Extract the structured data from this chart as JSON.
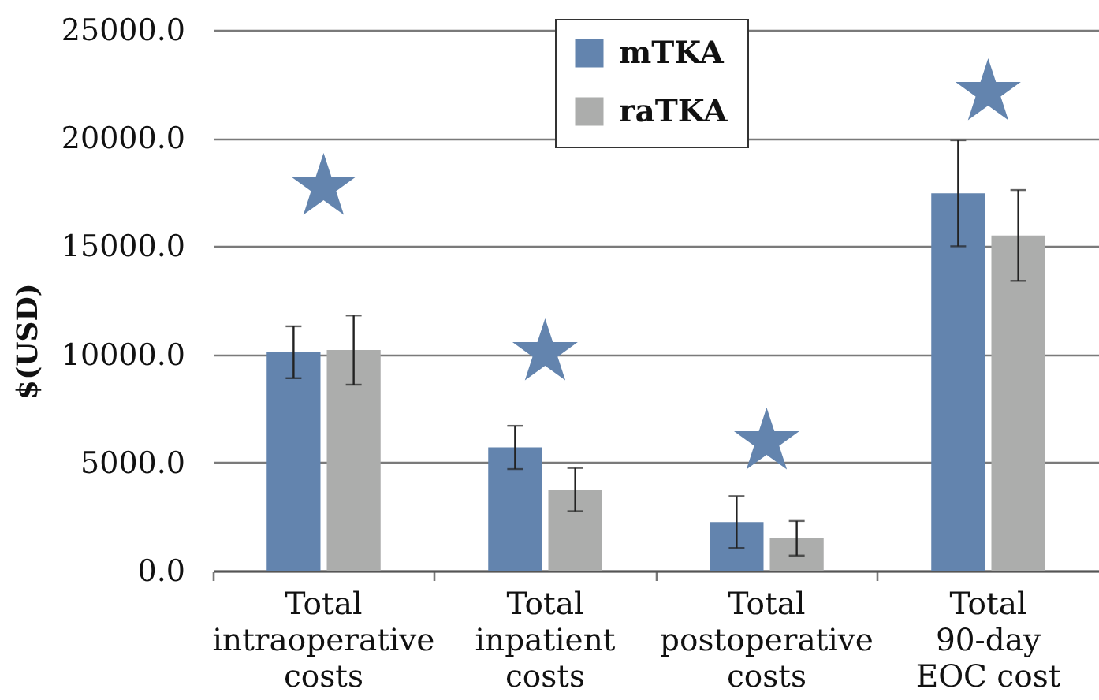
{
  "chart_data": {
    "type": "bar",
    "ylabel": "$(USD)",
    "categories": [
      "Total\nintraoperative\ncosts",
      "Total\ninpatient\ncosts",
      "Total\npostoperative\ncosts",
      "Total\n90-day\nEOC cost"
    ],
    "series": [
      {
        "name": "mTKA",
        "color": "#6384ae",
        "values": [
          10100,
          5700,
          2250,
          17450
        ],
        "errors": [
          1200,
          1000,
          1200,
          2450
        ]
      },
      {
        "name": "raTKA",
        "color": "#acadac",
        "values": [
          10200,
          3750,
          1500,
          15500
        ],
        "errors": [
          1600,
          1000,
          800,
          2100
        ]
      }
    ],
    "ylim": [
      0,
      25000
    ],
    "yticks": [
      {
        "value": 0,
        "label": "0.0"
      },
      {
        "value": 5000,
        "label": "5000.0"
      },
      {
        "value": 10000,
        "label": "10000.0"
      },
      {
        "value": 15000,
        "label": "15000.0"
      },
      {
        "value": 20000,
        "label": "20000.0"
      },
      {
        "value": 25000,
        "label": "25000.0"
      }
    ],
    "grid": "y",
    "legend": "top",
    "annotations": [
      "★",
      "★",
      "★",
      "★"
    ]
  }
}
